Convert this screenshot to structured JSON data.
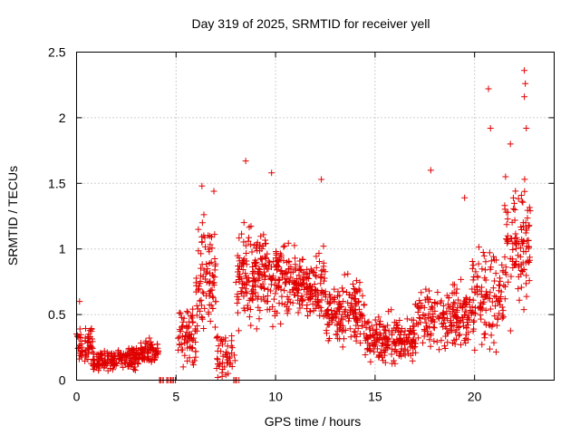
{
  "chart_data": {
    "type": "scatter",
    "title": "Day 319 of 2025, SRMTID for receiver yell",
    "xlabel": "GPS time / hours",
    "ylabel": "SRMTID / TECUs",
    "xlim": [
      0,
      24
    ],
    "ylim": [
      0,
      2.5
    ],
    "x_ticks": [
      0,
      5,
      10,
      15,
      20
    ],
    "x_tick_labels": [
      "0",
      "5",
      "10",
      "15",
      "20"
    ],
    "y_ticks": [
      0,
      0.5,
      1,
      1.5,
      2,
      2.5
    ],
    "y_tick_labels": [
      "0",
      "0.5",
      "1",
      "1.5",
      "2",
      "2.5"
    ],
    "grid": true,
    "marker": "+",
    "color": "#e00000",
    "segments": [
      {
        "x_start": 0.0,
        "x_end": 0.8,
        "mean": 0.28,
        "spread": 0.14,
        "count": 60
      },
      {
        "x_start": 0.8,
        "x_end": 2.0,
        "mean": 0.15,
        "spread": 0.07,
        "count": 90
      },
      {
        "x_start": 2.0,
        "x_end": 3.2,
        "mean": 0.17,
        "spread": 0.08,
        "count": 90
      },
      {
        "x_start": 3.2,
        "x_end": 4.1,
        "mean": 0.22,
        "spread": 0.09,
        "count": 70
      },
      {
        "x_start": 4.1,
        "x_end": 5.1,
        "mean": 0.0,
        "spread": 0.0,
        "count": 14
      },
      {
        "x_start": 5.1,
        "x_end": 6.0,
        "mean": 0.35,
        "spread": 0.22,
        "count": 70
      },
      {
        "x_start": 6.0,
        "x_end": 7.0,
        "mean": 0.75,
        "spread": 0.38,
        "count": 90
      },
      {
        "x_start": 7.0,
        "x_end": 8.0,
        "mean": 0.2,
        "spread": 0.18,
        "count": 50
      },
      {
        "x_start": 7.8,
        "x_end": 8.2,
        "mean": 0.0,
        "spread": 0.0,
        "count": 5
      },
      {
        "x_start": 8.0,
        "x_end": 10.5,
        "mean": 0.8,
        "spread": 0.3,
        "count": 230
      },
      {
        "x_start": 10.5,
        "x_end": 12.5,
        "mean": 0.72,
        "spread": 0.26,
        "count": 170
      },
      {
        "x_start": 12.5,
        "x_end": 14.5,
        "mean": 0.5,
        "spread": 0.22,
        "count": 160
      },
      {
        "x_start": 14.5,
        "x_end": 17.0,
        "mean": 0.3,
        "spread": 0.16,
        "count": 190
      },
      {
        "x_start": 17.0,
        "x_end": 19.8,
        "mean": 0.48,
        "spread": 0.22,
        "count": 190
      },
      {
        "x_start": 19.8,
        "x_end": 21.5,
        "mean": 0.62,
        "spread": 0.35,
        "count": 120
      },
      {
        "x_start": 21.5,
        "x_end": 22.8,
        "mean": 1.05,
        "spread": 0.42,
        "count": 110
      }
    ],
    "outliers": [
      {
        "x": 0.15,
        "y": 0.6
      },
      {
        "x": 6.3,
        "y": 1.48
      },
      {
        "x": 6.9,
        "y": 1.44
      },
      {
        "x": 8.5,
        "y": 1.67
      },
      {
        "x": 9.8,
        "y": 1.58
      },
      {
        "x": 12.3,
        "y": 1.53
      },
      {
        "x": 17.8,
        "y": 1.6
      },
      {
        "x": 19.5,
        "y": 1.39
      },
      {
        "x": 20.7,
        "y": 2.22
      },
      {
        "x": 20.8,
        "y": 1.92
      },
      {
        "x": 21.8,
        "y": 1.8
      },
      {
        "x": 22.5,
        "y": 2.36
      },
      {
        "x": 22.55,
        "y": 2.26
      },
      {
        "x": 22.5,
        "y": 2.16
      },
      {
        "x": 22.6,
        "y": 1.92
      }
    ]
  }
}
